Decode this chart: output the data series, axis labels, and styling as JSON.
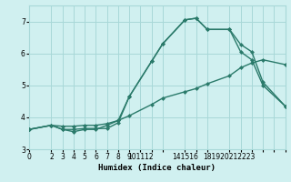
{
  "bg_color": "#d0f0f0",
  "grid_color": "#a8d8d8",
  "line_color": "#2a7a6a",
  "line_width": 1.0,
  "marker": "D",
  "marker_size": 2.5,
  "xlabel": "Humidex (Indice chaleur)",
  "xlim": [
    0,
    23
  ],
  "ylim": [
    3.0,
    7.5
  ],
  "yticks": [
    3,
    4,
    5,
    6,
    7
  ],
  "xticks": [
    0,
    2,
    3,
    4,
    5,
    6,
    7,
    8,
    9,
    10,
    11,
    12,
    14,
    15,
    16,
    18,
    19,
    20,
    21,
    22,
    23
  ],
  "xticklabels": [
    "0",
    "2",
    "3",
    "4",
    "5",
    "6",
    "7",
    "8",
    "9",
    "101112",
    "",
    "",
    "141516",
    "",
    "",
    "181920212223",
    "",
    "",
    "",
    "",
    ""
  ],
  "curve1_x": [
    0,
    2,
    3,
    4,
    5,
    6,
    7,
    8,
    9,
    11,
    12,
    14,
    15,
    16,
    18,
    19,
    20,
    21,
    23
  ],
  "curve1_y": [
    3.62,
    3.75,
    3.62,
    3.62,
    3.65,
    3.65,
    3.65,
    3.83,
    4.65,
    5.75,
    6.3,
    7.05,
    7.1,
    6.75,
    6.75,
    6.28,
    6.05,
    5.1,
    4.35
  ],
  "curve2_x": [
    0,
    2,
    3,
    4,
    5,
    6,
    7,
    8,
    9,
    11,
    12,
    14,
    15,
    16,
    18,
    19,
    20,
    21,
    23
  ],
  "curve2_y": [
    3.62,
    3.75,
    3.62,
    3.55,
    3.62,
    3.62,
    3.75,
    3.9,
    4.65,
    5.75,
    6.3,
    7.05,
    7.1,
    6.75,
    6.75,
    6.05,
    5.8,
    5.0,
    4.35
  ],
  "curve3_x": [
    0,
    2,
    3,
    4,
    5,
    6,
    7,
    8,
    9,
    11,
    12,
    14,
    15,
    16,
    18,
    19,
    20,
    21,
    23
  ],
  "curve3_y": [
    3.62,
    3.75,
    3.72,
    3.72,
    3.75,
    3.75,
    3.8,
    3.9,
    4.05,
    4.4,
    4.6,
    4.8,
    4.9,
    5.05,
    5.3,
    5.55,
    5.7,
    5.8,
    5.65
  ],
  "title_fontsize": 8,
  "label_fontsize": 6.5,
  "tick_fontsize": 5.5
}
